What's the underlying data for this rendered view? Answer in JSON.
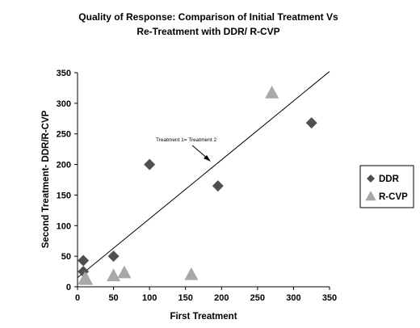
{
  "chart_data": {
    "type": "scatter",
    "title": [
      "Quality of Response: Comparison of Initial Treatment Vs",
      "Re-Treatment with DDR/ R-CVP"
    ],
    "xlabel": "First Treatment",
    "ylabel": "Second Treatment- DDR/R-CVP",
    "xlim": [
      0,
      350
    ],
    "ylim": [
      0,
      350
    ],
    "xticks": [
      0,
      50,
      100,
      150,
      200,
      250,
      300,
      350
    ],
    "yticks": [
      0,
      50,
      100,
      150,
      200,
      250,
      300,
      350
    ],
    "grid": false,
    "legend_position": "right",
    "series": [
      {
        "name": "DDR",
        "marker": "diamond",
        "color": "#505050",
        "points": [
          [
            8,
            43
          ],
          [
            8,
            25
          ],
          [
            50,
            50
          ],
          [
            100,
            200
          ],
          [
            195,
            165
          ],
          [
            325,
            268
          ]
        ]
      },
      {
        "name": "R-CVP",
        "marker": "triangle",
        "color": "#a8a8a8",
        "points": [
          [
            10,
            13
          ],
          [
            12,
            12
          ],
          [
            50,
            18
          ],
          [
            65,
            23
          ],
          [
            158,
            20
          ],
          [
            270,
            317
          ]
        ]
      }
    ],
    "reference_line": {
      "from": [
        0,
        15
      ],
      "to": [
        350,
        352
      ]
    },
    "annotation": {
      "text": "Treatment 1= Treatment 2"
    }
  }
}
